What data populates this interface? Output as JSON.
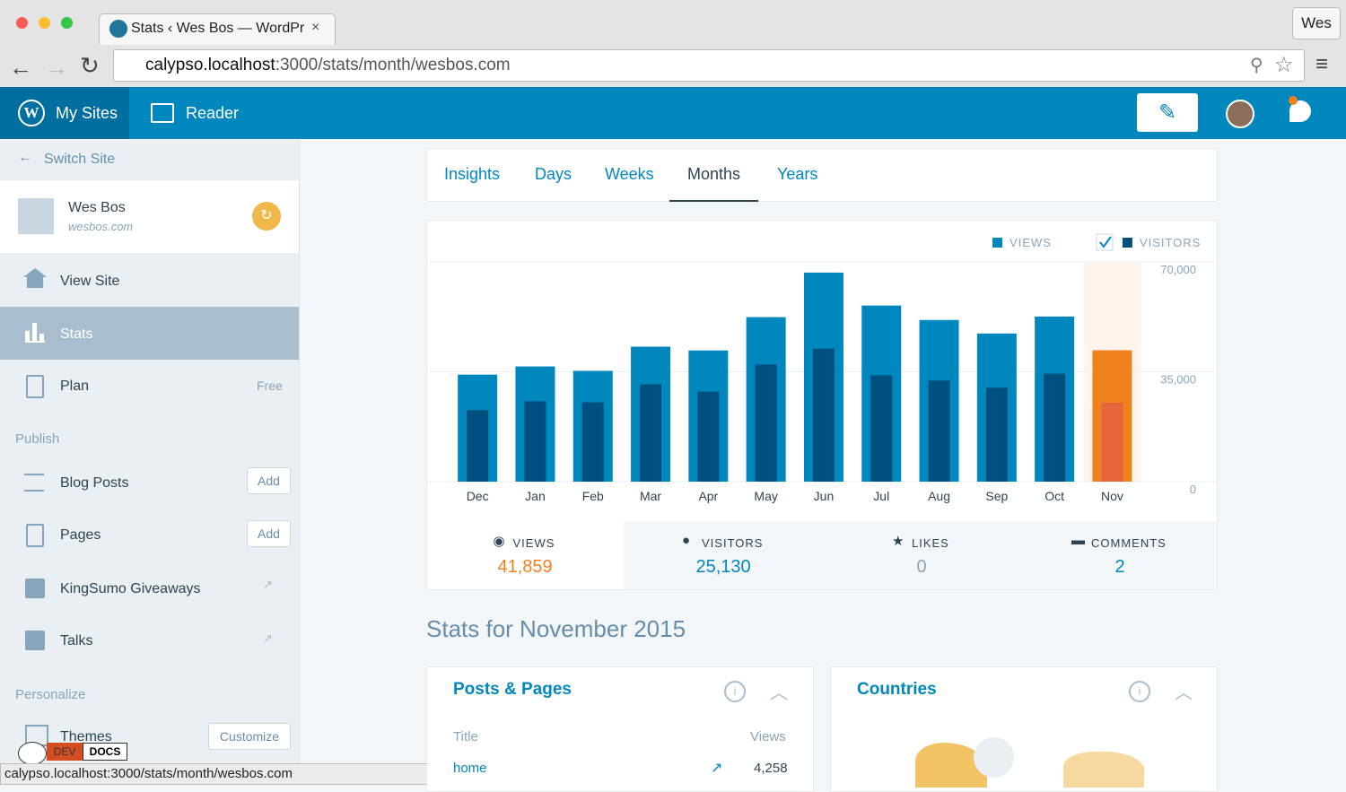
{
  "browser": {
    "tab_title": "Stats ‹ Wes Bos — WordPr",
    "profile": "Wes",
    "url_host": "calypso.localhost",
    "url_path": ":3000/stats/month/wesbos.com",
    "status_url": "calypso.localhost:3000/stats/month/wesbos.com"
  },
  "masterbar": {
    "my_sites": "My Sites",
    "reader": "Reader"
  },
  "sidebar": {
    "switch_site": "Switch Site",
    "site_name": "Wes Bos",
    "site_domain": "wesbos.com",
    "view_site": "View Site",
    "stats": "Stats",
    "plan": "Plan",
    "plan_badge": "Free",
    "publish": "Publish",
    "blog_posts": "Blog Posts",
    "pages": "Pages",
    "add": "Add",
    "kingsumo": "KingSumo Giveaways",
    "talks": "Talks",
    "personalize": "Personalize",
    "themes": "Themes",
    "customize": "Customize",
    "dev": "DEV",
    "docs": "DOCS"
  },
  "tabs": [
    "Insights",
    "Days",
    "Weeks",
    "Months",
    "Years"
  ],
  "selected_tab": 3,
  "chart_data": {
    "type": "bar",
    "categories": [
      "Dec",
      "Jan",
      "Feb",
      "Mar",
      "Apr",
      "May",
      "Jun",
      "Jul",
      "Aug",
      "Sep",
      "Oct",
      "Nov"
    ],
    "series": [
      {
        "name": "VIEWS",
        "color": "#0087be",
        "highlight_color": "#f0821e",
        "values": [
          34100,
          36700,
          35300,
          43000,
          41800,
          52400,
          66600,
          56100,
          51500,
          47200,
          52600,
          41859
        ]
      },
      {
        "name": "VISITORS",
        "color": "#00507f",
        "highlight_color": "#e4643c",
        "values": [
          22800,
          25600,
          25300,
          31000,
          28700,
          37300,
          42400,
          33900,
          32200,
          29900,
          34400,
          25130
        ]
      }
    ],
    "selected_index": 11,
    "ylim": [
      0,
      70000
    ],
    "yticks": [
      0,
      {
        "value": 35000,
        "label": "35,000"
      },
      {
        "value": 70000,
        "label": "70,000"
      }
    ],
    "grid": true,
    "legend": "top-right"
  },
  "summary": [
    {
      "label": "VIEWS",
      "value": "41,859"
    },
    {
      "label": "VISITORS",
      "value": "25,130"
    },
    {
      "label": "LIKES",
      "value": "0"
    },
    {
      "label": "COMMENTS",
      "value": "2"
    }
  ],
  "period_heading": "Stats for November 2015",
  "posts_card": {
    "title": "Posts & Pages",
    "col_title": "Title",
    "col_views": "Views",
    "rows": [
      [
        "home",
        "4,258"
      ]
    ]
  },
  "countries_card": {
    "title": "Countries"
  }
}
